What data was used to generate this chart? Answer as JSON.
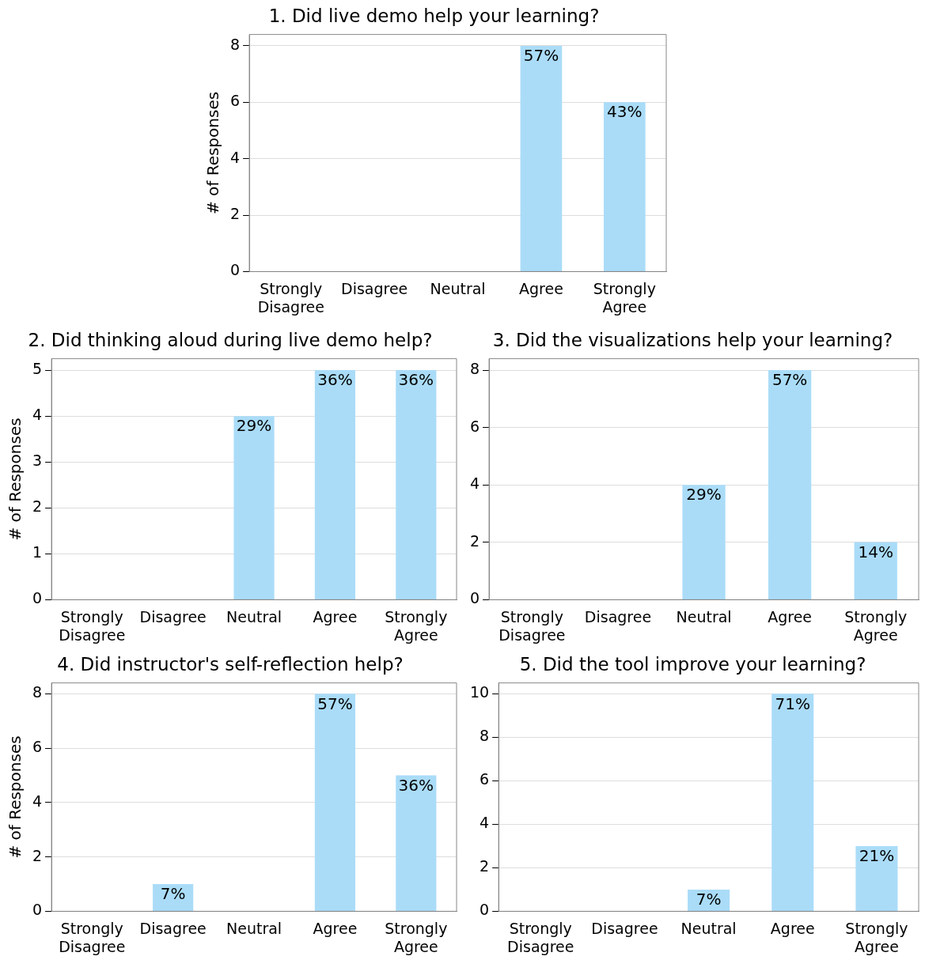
{
  "chart_data": [
    {
      "type": "bar",
      "title": "1. Did live demo help your learning?",
      "ylabel": "# of Responses",
      "categories": [
        "Strongly Disagree",
        "Disagree",
        "Neutral",
        "Agree",
        "Strongly Agree"
      ],
      "values": [
        0,
        0,
        0,
        8,
        6
      ],
      "color": "#aadcf8",
      "ylim": [
        0,
        8.4
      ],
      "yticks": [
        0,
        2,
        4,
        6,
        8
      ],
      "grid": "y",
      "annotations": [
        {
          "text": "57%",
          "x": "Agree",
          "y": 8
        },
        {
          "text": "43%",
          "x": "Strongly Agree",
          "y": 6
        }
      ]
    },
    {
      "type": "bar",
      "title": "2. Did thinking aloud during live demo help?",
      "ylabel": "# of Responses",
      "categories": [
        "Strongly Disagree",
        "Disagree",
        "Neutral",
        "Agree",
        "Strongly Agree"
      ],
      "values": [
        0,
        0,
        4,
        5,
        5
      ],
      "color": "#aadcf8",
      "ylim": [
        0,
        5.25
      ],
      "yticks": [
        0,
        1,
        2,
        3,
        4,
        5
      ],
      "grid": "y",
      "annotations": [
        {
          "text": "29%",
          "x": "Neutral",
          "y": 4
        },
        {
          "text": "36%",
          "x": "Agree",
          "y": 5
        },
        {
          "text": "36%",
          "x": "Strongly Agree",
          "y": 5
        }
      ]
    },
    {
      "type": "bar",
      "title": "3. Did the visualizations help your learning?",
      "categories": [
        "Strongly Disagree",
        "Disagree",
        "Neutral",
        "Agree",
        "Strongly Agree"
      ],
      "values": [
        0,
        0,
        4,
        8,
        2
      ],
      "color": "#aadcf8",
      "ylim": [
        0,
        8.4
      ],
      "yticks": [
        0,
        2,
        4,
        6,
        8
      ],
      "grid": "y",
      "annotations": [
        {
          "text": "29%",
          "x": "Neutral",
          "y": 4
        },
        {
          "text": "57%",
          "x": "Agree",
          "y": 8
        },
        {
          "text": "14%",
          "x": "Strongly Agree",
          "y": 2
        }
      ]
    },
    {
      "type": "bar",
      "title": "4. Did instructor's self-reflection help?",
      "ylabel": "# of Responses",
      "categories": [
        "Strongly Disagree",
        "Disagree",
        "Neutral",
        "Agree",
        "Strongly Agree"
      ],
      "values": [
        0,
        1,
        0,
        8,
        5
      ],
      "color": "#aadcf8",
      "ylim": [
        0,
        8.4
      ],
      "yticks": [
        0,
        2,
        4,
        6,
        8
      ],
      "grid": "y",
      "annotations": [
        {
          "text": "7%",
          "x": "Disagree",
          "y": 1
        },
        {
          "text": "57%",
          "x": "Agree",
          "y": 8
        },
        {
          "text": "36%",
          "x": "Strongly Agree",
          "y": 5
        }
      ]
    },
    {
      "type": "bar",
      "title": "5. Did the tool improve your learning?",
      "categories": [
        "Strongly Disagree",
        "Disagree",
        "Neutral",
        "Agree",
        "Strongly Agree"
      ],
      "values": [
        0,
        0,
        1,
        10,
        3
      ],
      "color": "#aadcf8",
      "ylim": [
        0,
        10.5
      ],
      "yticks": [
        0,
        2,
        4,
        6,
        8,
        10
      ],
      "grid": "y",
      "annotations": [
        {
          "text": "7%",
          "x": "Neutral",
          "y": 1
        },
        {
          "text": "71%",
          "x": "Agree",
          "y": 10
        },
        {
          "text": "21%",
          "x": "Strongly Agree",
          "y": 3
        }
      ]
    }
  ]
}
